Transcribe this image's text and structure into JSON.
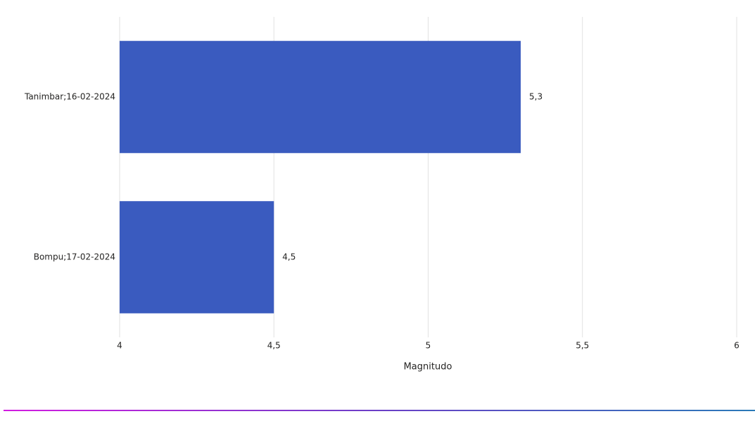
{
  "chart_data": {
    "type": "bar",
    "orientation": "horizontal",
    "categories": [
      "Tanimbar;16-02-2024",
      "Bompu;17-02-2024"
    ],
    "values": [
      5.3,
      4.5
    ],
    "value_labels": [
      "5,3",
      "4,5"
    ],
    "color": "#3a5bbf",
    "xlim": [
      4,
      6
    ],
    "xticks": [
      4,
      {
        "value": 4.5,
        "label": "4,5"
      },
      5,
      {
        "value": 5.5,
        "label": "5,5"
      },
      6
    ],
    "x_label": "Magnitudo",
    "grid": true
  }
}
